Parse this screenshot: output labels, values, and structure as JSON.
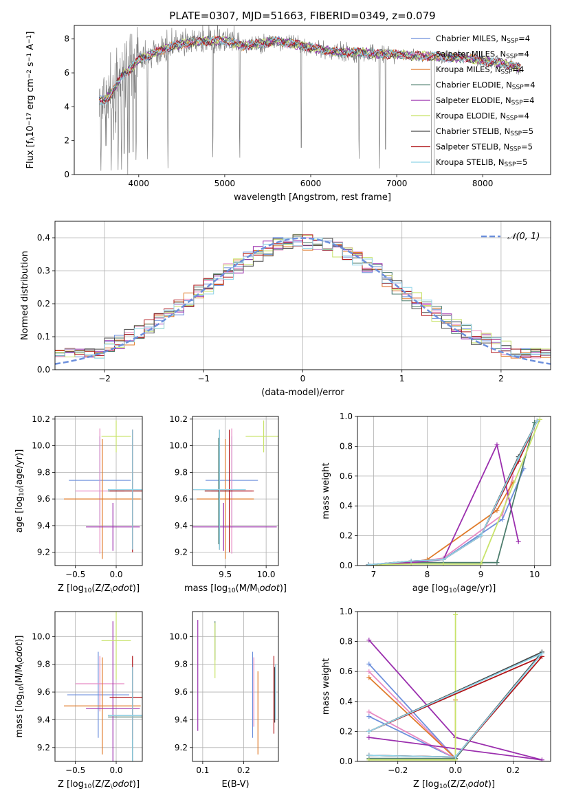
{
  "title": "PLATE=0307, MJD=51663, FIBERID=0349, z=0.079",
  "colors": {
    "chabrier_miles": "#6c8fdc",
    "salpeter_miles": "#e78ac3",
    "kroupa_miles": "#e07b2a",
    "chabrier_elodie": "#4d7d6d",
    "salpeter_elodie": "#9b2fae",
    "kroupa_elodie": "#c8e36a",
    "chabrier_stelib": "#4a4a4a",
    "salpeter_stelib": "#b0161a",
    "kroupa_stelib": "#8fd3e8",
    "data": "#808080"
  },
  "chart_data": [
    {
      "id": "spectrum",
      "type": "line",
      "xlabel": "wavelength [Angstrom, rest frame]",
      "ylabel": "Flux [f$_\\lambda$10$^{-17}$ erg cm$^{-2}$ s$^{-1}$ A$^{-1}$]",
      "ylabel_parts": [
        "Flux [f",
        "λ",
        "10",
        "−17",
        " erg cm",
        "−2",
        " s",
        "−1",
        " A",
        "−1",
        "]"
      ],
      "xlim": [
        3250,
        8790
      ],
      "ylim": [
        0,
        8.8
      ],
      "xticks": [
        4000,
        5000,
        6000,
        7000,
        8000
      ],
      "yticks": [
        0,
        2,
        4,
        6,
        8
      ],
      "grid": false,
      "legend_position": "right",
      "data_range": [
        3540,
        8440
      ],
      "continuum": {
        "x": [
          3540,
          3600,
          3700,
          3800,
          3900,
          4000,
          4100,
          4200,
          4400,
          4600,
          4800,
          5000,
          5200,
          5400,
          5600,
          5800,
          6000,
          6200,
          6400,
          6600,
          6800,
          7000,
          7200,
          7400,
          7600,
          7800,
          8000,
          8200,
          8440
        ],
        "y": [
          4.4,
          4.5,
          4.9,
          5.8,
          6.2,
          6.8,
          7.0,
          7.2,
          7.6,
          7.8,
          7.9,
          7.9,
          7.6,
          7.7,
          7.9,
          7.7,
          7.5,
          7.3,
          7.2,
          7.2,
          7.1,
          7.1,
          7.0,
          7.0,
          6.9,
          6.9,
          6.7,
          6.6,
          6.3
        ]
      },
      "deep_features": [
        3560,
        3620,
        3680,
        3760,
        3800,
        3830,
        3890,
        3934,
        3969,
        4101,
        4340,
        4861,
        5175,
        5890,
        6563,
        6800,
        6870,
        7420
      ],
      "legend": [
        [
          "Chabrier MILES, N",
          "SSP",
          "=4"
        ],
        [
          "Salpeter MILES, N",
          "SSP",
          "=4"
        ],
        [
          "Kroupa MILES, N",
          "SSP",
          "=4"
        ],
        [
          "Chabrier ELODIE, N",
          "SSP",
          "=4"
        ],
        [
          "Salpeter ELODIE, N",
          "SSP",
          "=4"
        ],
        [
          "Kroupa ELODIE, N",
          "SSP",
          "=4"
        ],
        [
          "Chabrier STELIB, N",
          "SSP",
          "=5"
        ],
        [
          "Salpeter STELIB, N",
          "SSP",
          "=5"
        ],
        [
          "Kroupa STELIB, N",
          "SSP",
          "=5"
        ]
      ]
    },
    {
      "id": "residuals",
      "type": "histogram",
      "xlabel": "(data-model)/error",
      "ylabel": "Normed distribution",
      "xlim": [
        -2.5,
        2.5
      ],
      "ylim": [
        0,
        0.45
      ],
      "xticks": [
        -2,
        -1,
        0,
        1,
        2
      ],
      "yticks": [
        0,
        0.1,
        0.2,
        0.3,
        0.4
      ],
      "grid": true,
      "legend": "$\\mathcal{N}(0,1)$",
      "legend_text": "𝒩(0, 1)",
      "bin_width": 0.1,
      "bin_start": -2.5,
      "gaussian": {
        "mu": 0,
        "sigma": 1
      }
    },
    {
      "id": "age_vs_Z",
      "type": "errorbar",
      "xlabel": "Z [log$_{10}$(Z/Z$_\\odot$)]",
      "ylabel": "age  [log$_{10}$(age/yr)]",
      "xlim": [
        -0.75,
        0.32
      ],
      "ylim": [
        9.1,
        10.22
      ],
      "xticks": [
        -0.5,
        0.0
      ],
      "yticks": [
        9.2,
        9.4,
        9.6,
        9.8,
        10.0,
        10.2
      ],
      "grid": true,
      "points": [
        {
          "model": "chabrier_miles",
          "x": -0.2,
          "y": 9.74,
          "xerr": 0.38,
          "yerr": 0.33
        },
        {
          "model": "salpeter_miles",
          "x": -0.2,
          "y": 9.66,
          "xerr": 0.3,
          "yerr": 0.47
        },
        {
          "model": "kroupa_miles",
          "x": -0.17,
          "y": 9.6,
          "xerr": 0.47,
          "yerr": 0.45
        },
        {
          "model": "chabrier_elodie",
          "x": 0.2,
          "y": 9.66,
          "xerr": 0.3,
          "yerr": 0.4
        },
        {
          "model": "salpeter_elodie",
          "x": -0.04,
          "y": 9.39,
          "xerr": 0.33,
          "yerr": 0.18
        },
        {
          "model": "kroupa_elodie",
          "x": 0.0,
          "y": 10.07,
          "xerr": 0.18,
          "yerr": 0.12
        },
        {
          "model": "chabrier_stelib",
          "x": 0.2,
          "y": 9.67,
          "xerr": 0.3,
          "yerr": 0.45
        },
        {
          "model": "salpeter_stelib",
          "x": 0.2,
          "y": 9.66,
          "xerr": 0.28,
          "yerr": 0.46
        },
        {
          "model": "kroupa_stelib",
          "x": 0.2,
          "y": 9.67,
          "xerr": 0.3,
          "yerr": 0.45
        }
      ]
    },
    {
      "id": "age_vs_mass",
      "type": "errorbar",
      "xlabel": "mass [log$_{10}$(M/M$_\\odot$)]",
      "ylabel": "",
      "xlim": [
        9.1,
        10.15
      ],
      "ylim": [
        9.1,
        10.22
      ],
      "xticks": [
        9.5,
        10.0
      ],
      "yticks": [
        9.2,
        9.4,
        9.6,
        9.8,
        10.0,
        10.2
      ],
      "grid": true,
      "points": [
        {
          "model": "chabrier_miles",
          "x": 9.58,
          "y": 9.74,
          "xerr": 0.32,
          "yerr": 0.33
        },
        {
          "model": "salpeter_miles",
          "x": 9.58,
          "y": 9.66,
          "xerr": 0.25,
          "yerr": 0.47
        },
        {
          "model": "kroupa_miles",
          "x": 9.5,
          "y": 9.6,
          "xerr": 0.35,
          "yerr": 0.45
        },
        {
          "model": "chabrier_elodie",
          "x": 9.42,
          "y": 9.66,
          "xerr": 0.17,
          "yerr": 0.4
        },
        {
          "model": "salpeter_elodie",
          "x": 9.48,
          "y": 9.39,
          "xerr": 0.65,
          "yerr": 0.18
        },
        {
          "model": "kroupa_elodie",
          "x": 9.97,
          "y": 10.07,
          "xerr": 0.22,
          "yerr": 0.12
        },
        {
          "model": "chabrier_stelib",
          "x": 9.43,
          "y": 9.67,
          "xerr": 0.32,
          "yerr": 0.45
        },
        {
          "model": "salpeter_stelib",
          "x": 9.55,
          "y": 9.66,
          "xerr": 0.3,
          "yerr": 0.46
        },
        {
          "model": "kroupa_stelib",
          "x": 9.43,
          "y": 9.67,
          "xerr": 0.32,
          "yerr": 0.45
        }
      ]
    },
    {
      "id": "weight_vs_age",
      "type": "line",
      "xlabel": "age  [log$_{10}$(age/yr)]",
      "ylabel": "mass weight",
      "xlim": [
        6.7,
        10.3
      ],
      "ylim": [
        0,
        1.0
      ],
      "xticks": [
        7,
        8,
        9,
        10
      ],
      "yticks": [
        0.0,
        0.2,
        0.4,
        0.6,
        0.8,
        1.0
      ],
      "grid": true,
      "series": [
        {
          "model": "chabrier_miles",
          "x": [
            6.9,
            7.7,
            8.3,
            9.4,
            9.8
          ],
          "y": [
            0.005,
            0.02,
            0.04,
            0.31,
            0.65
          ]
        },
        {
          "model": "salpeter_miles",
          "x": [
            6.9,
            7.7,
            8.3,
            9.4,
            9.6
          ],
          "y": [
            0.005,
            0.02,
            0.05,
            0.34,
            0.6
          ]
        },
        {
          "model": "kroupa_miles",
          "x": [
            6.9,
            7.7,
            8.0,
            9.3,
            9.6
          ],
          "y": [
            0.005,
            0.02,
            0.04,
            0.37,
            0.56
          ]
        },
        {
          "model": "chabrier_elodie",
          "x": [
            6.9,
            7.7,
            9.3,
            10.0
          ],
          "y": [
            0.005,
            0.02,
            0.02,
            0.96
          ]
        },
        {
          "model": "salpeter_elodie",
          "x": [
            6.9,
            7.7,
            8.3,
            9.3,
            9.7
          ],
          "y": [
            0.005,
            0.02,
            0.04,
            0.81,
            0.16
          ]
        },
        {
          "model": "kroupa_elodie",
          "x": [
            6.9,
            7.7,
            8.3,
            9.0,
            10.1
          ],
          "y": [
            0.005,
            0.01,
            0.01,
            0.01,
            0.98
          ]
        },
        {
          "model": "chabrier_stelib",
          "x": [
            6.9,
            7.7,
            8.3,
            9.0,
            9.7,
            10.05
          ],
          "y": [
            0.005,
            0.03,
            0.04,
            0.2,
            0.73,
            0.97
          ]
        },
        {
          "model": "salpeter_stelib",
          "x": [
            6.9,
            7.7,
            8.3,
            9.0,
            9.7,
            10.05
          ],
          "y": [
            0.005,
            0.03,
            0.04,
            0.2,
            0.7,
            0.97
          ]
        },
        {
          "model": "kroupa_stelib",
          "x": [
            6.9,
            7.7,
            8.3,
            9.0,
            9.7,
            10.05
          ],
          "y": [
            0.005,
            0.03,
            0.04,
            0.2,
            0.72,
            0.97
          ]
        }
      ]
    },
    {
      "id": "mass_vs_Z",
      "type": "errorbar",
      "xlabel": "Z [log$_{10}$(Z/Z$_\\odot$)]",
      "ylabel": "mass [log$_{10}$(M/M$_\\odot$)]",
      "xlim": [
        -0.75,
        0.32
      ],
      "ylim": [
        9.1,
        10.18
      ],
      "xticks": [
        -0.5,
        0.0
      ],
      "yticks": [
        9.2,
        9.4,
        9.6,
        9.8,
        10.0
      ],
      "grid": true,
      "points": [
        {
          "model": "chabrier_miles",
          "x": -0.22,
          "y": 9.58,
          "xerr": 0.38,
          "yerr": 0.31
        },
        {
          "model": "salpeter_miles",
          "x": -0.2,
          "y": 9.66,
          "xerr": 0.3,
          "yerr": 0.2
        },
        {
          "model": "kroupa_miles",
          "x": -0.17,
          "y": 9.5,
          "xerr": 0.47,
          "yerr": 0.35
        },
        {
          "model": "chabrier_elodie",
          "x": 0.2,
          "y": 9.42,
          "xerr": 0.3,
          "yerr": 0.35
        },
        {
          "model": "salpeter_elodie",
          "x": -0.04,
          "y": 9.48,
          "xerr": 0.33,
          "yerr": 0.63
        },
        {
          "model": "kroupa_elodie",
          "x": 0.0,
          "y": 9.97,
          "xerr": 0.18,
          "yerr": 0.28
        },
        {
          "model": "chabrier_stelib",
          "x": 0.2,
          "y": 9.43,
          "xerr": 0.3,
          "yerr": 0.35
        },
        {
          "model": "salpeter_stelib",
          "x": 0.2,
          "y": 9.56,
          "xerr": 0.28,
          "yerr": 0.3
        },
        {
          "model": "kroupa_stelib",
          "x": 0.2,
          "y": 9.43,
          "xerr": 0.3,
          "yerr": 0.35
        }
      ]
    },
    {
      "id": "mass_vs_ebv",
      "type": "errorbar",
      "xlabel": "E(B-V)",
      "ylabel": "",
      "xlim": [
        0.075,
        0.285
      ],
      "ylim": [
        9.1,
        10.18
      ],
      "xticks": [
        0.1,
        0.2
      ],
      "yticks": [
        9.2,
        9.4,
        9.6,
        9.8,
        10.0
      ],
      "grid": true,
      "points": [
        {
          "model": "chabrier_miles",
          "x": 0.222,
          "y": 9.58,
          "xerr": 0,
          "yerr": 0.31
        },
        {
          "model": "salpeter_miles",
          "x": 0.225,
          "y": 9.6,
          "xerr": 0,
          "yerr": 0.25
        },
        {
          "model": "kroupa_miles",
          "x": 0.235,
          "y": 9.45,
          "xerr": 0,
          "yerr": 0.3
        },
        {
          "model": "chabrier_elodie",
          "x": 0.13,
          "y": 9.97,
          "xerr": 0,
          "yerr": 0.14
        },
        {
          "model": "salpeter_elodie",
          "x": 0.088,
          "y": 9.72,
          "xerr": 0,
          "yerr": 0.4
        },
        {
          "model": "kroupa_elodie",
          "x": 0.13,
          "y": 9.9,
          "xerr": 0,
          "yerr": 0.2
        },
        {
          "model": "chabrier_stelib",
          "x": 0.276,
          "y": 9.58,
          "xerr": 0,
          "yerr": 0.2
        },
        {
          "model": "salpeter_stelib",
          "x": 0.274,
          "y": 9.58,
          "xerr": 0,
          "yerr": 0.28
        },
        {
          "model": "kroupa_stelib",
          "x": 0.278,
          "y": 9.6,
          "xerr": 0,
          "yerr": 0.2
        }
      ]
    },
    {
      "id": "weight_vs_Z",
      "type": "line",
      "xlabel": "Z [log$_{10}$(Z/Z$_\\odot$)]",
      "ylabel": "mass weight",
      "xlim": [
        -0.34,
        0.33
      ],
      "ylim": [
        0,
        1.0
      ],
      "xticks": [
        -0.2,
        0.0,
        0.2
      ],
      "yticks": [
        0.0,
        0.2,
        0.4,
        0.6,
        0.8,
        1.0
      ],
      "grid": true,
      "series": [
        {
          "model": "chabrier_miles",
          "x": [
            -0.3,
            0.0,
            -0.3
          ],
          "y": [
            0.65,
            0.02,
            0.3
          ]
        },
        {
          "model": "salpeter_miles",
          "x": [
            -0.3,
            0.0,
            -0.3
          ],
          "y": [
            0.6,
            0.02,
            0.33
          ]
        },
        {
          "model": "kroupa_miles",
          "x": [
            -0.3,
            0.0,
            0.0
          ],
          "y": [
            0.56,
            0.02,
            0.41
          ]
        },
        {
          "model": "chabrier_elodie",
          "x": [
            -0.3,
            0.0,
            0.3
          ],
          "y": [
            0.02,
            0.02,
            0.73
          ]
        },
        {
          "model": "salpeter_elodie",
          "x": [
            -0.3,
            0.0,
            0.3,
            -0.3
          ],
          "y": [
            0.81,
            0.16,
            0.01,
            0.16
          ]
        },
        {
          "model": "kroupa_elodie",
          "x": [
            -0.3,
            0.0,
            0.0
          ],
          "y": [
            0.01,
            0.01,
            0.98
          ]
        },
        {
          "model": "chabrier_stelib",
          "x": [
            -0.3,
            0.0,
            0.3,
            -0.3
          ],
          "y": [
            0.04,
            0.03,
            0.73,
            0.2
          ]
        },
        {
          "model": "salpeter_stelib",
          "x": [
            -0.3,
            0.0,
            0.3,
            -0.3
          ],
          "y": [
            0.04,
            0.03,
            0.7,
            0.2
          ]
        },
        {
          "model": "kroupa_stelib",
          "x": [
            -0.3,
            0.0,
            0.3,
            -0.3
          ],
          "y": [
            0.04,
            0.03,
            0.72,
            0.2
          ]
        }
      ]
    }
  ]
}
